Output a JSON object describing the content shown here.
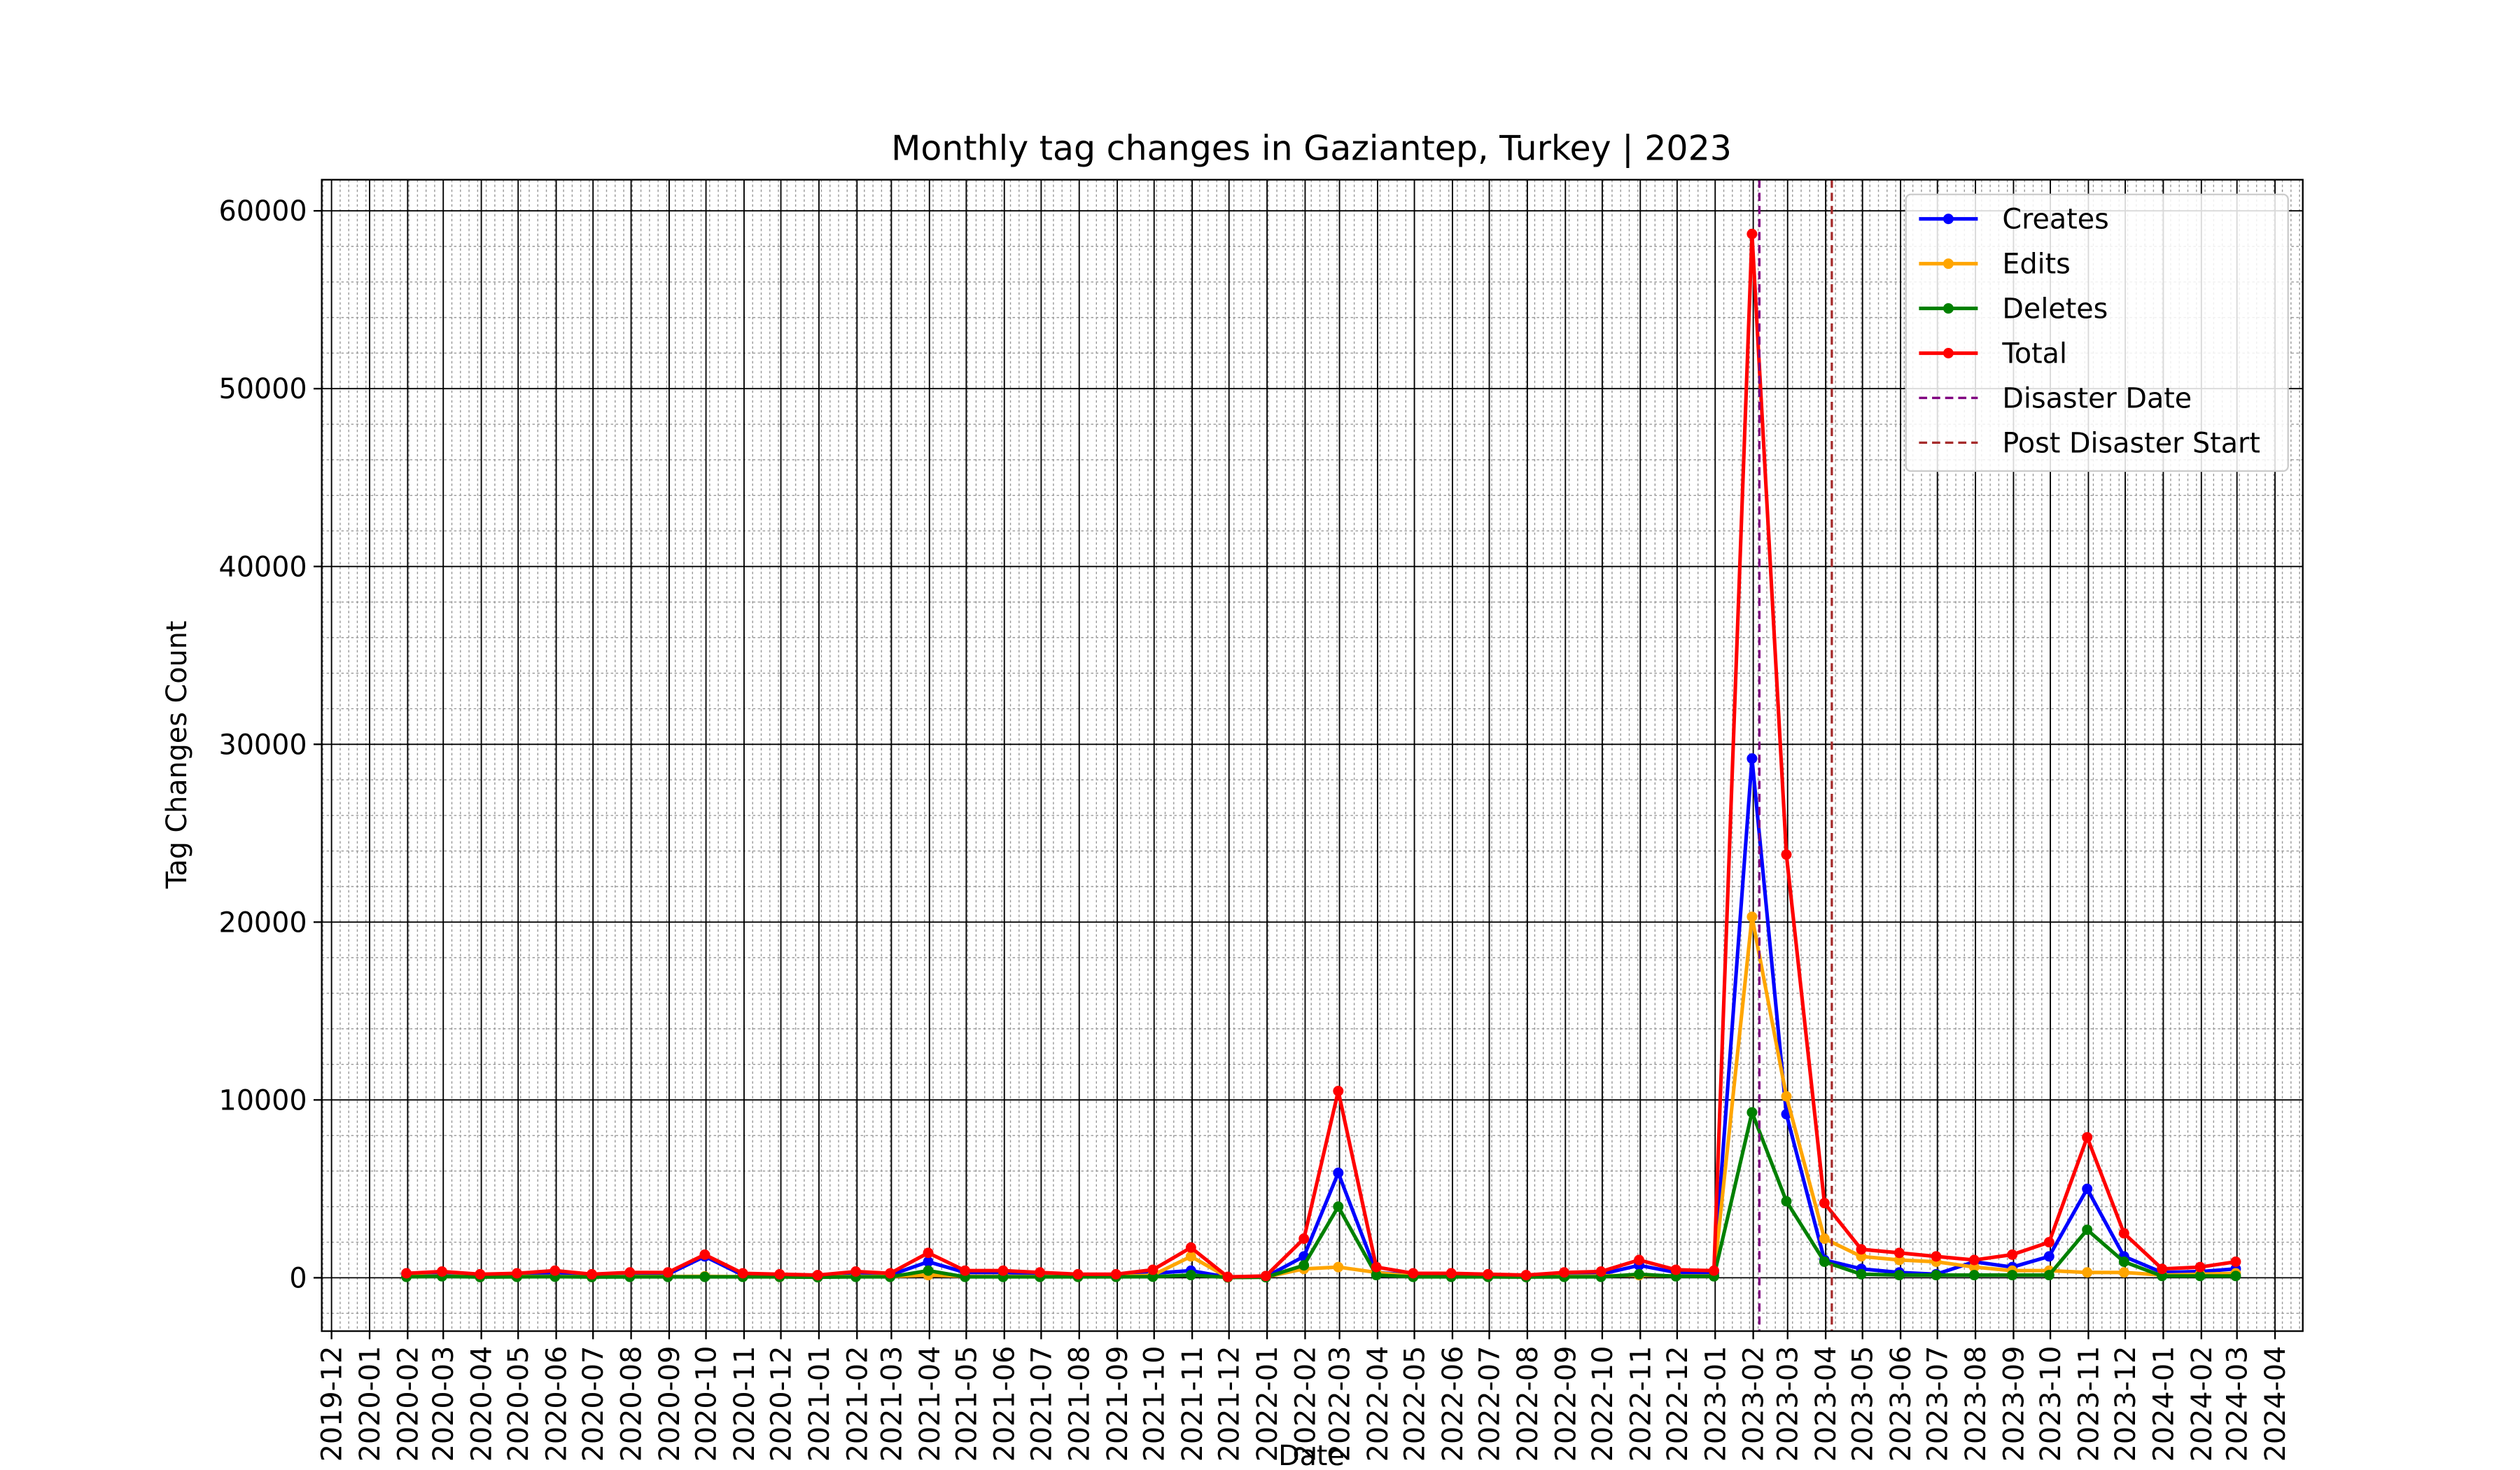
{
  "chart_data": {
    "type": "line",
    "title": "Monthly tag changes in Gaziantep, Turkey | 2023",
    "x_label": "Date",
    "y_label": "Tag Changes Count",
    "x": [
      "2020-01",
      "2020-02",
      "2020-03",
      "2020-04",
      "2020-05",
      "2020-06",
      "2020-07",
      "2020-08",
      "2020-09",
      "2020-10",
      "2020-11",
      "2020-12",
      "2021-01",
      "2021-02",
      "2021-03",
      "2021-04",
      "2021-05",
      "2021-06",
      "2021-07",
      "2021-08",
      "2021-09",
      "2021-10",
      "2021-11",
      "2021-12",
      "2022-01",
      "2022-02",
      "2022-03",
      "2022-04",
      "2022-05",
      "2022-06",
      "2022-07",
      "2022-08",
      "2022-09",
      "2022-10",
      "2022-11",
      "2022-12",
      "2023-01",
      "2023-02",
      "2023-03",
      "2023-04",
      "2023-05",
      "2023-06",
      "2023-07",
      "2023-08",
      "2023-09",
      "2023-10",
      "2023-11",
      "2023-12",
      "2024-01",
      "2024-02"
    ],
    "series": [
      {
        "name": "Creates",
        "color": "#0000ff",
        "values": [
          200,
          250,
          150,
          150,
          300,
          150,
          200,
          200,
          1200,
          150,
          150,
          100,
          250,
          150,
          900,
          300,
          300,
          200,
          100,
          100,
          250,
          400,
          30,
          50,
          1200,
          5900,
          300,
          150,
          150,
          100,
          100,
          200,
          200,
          700,
          300,
          250,
          29200,
          9200,
          1000,
          500,
          300,
          200,
          900,
          600,
          1200,
          5000,
          1200,
          300,
          350,
          500
        ]
      },
      {
        "name": "Edits",
        "color": "#ffa500",
        "values": [
          80,
          100,
          60,
          70,
          80,
          50,
          70,
          70,
          80,
          60,
          50,
          40,
          80,
          70,
          150,
          80,
          80,
          70,
          60,
          60,
          150,
          1200,
          20,
          40,
          500,
          600,
          300,
          80,
          80,
          80,
          50,
          80,
          100,
          150,
          100,
          100,
          20300,
          10200,
          2200,
          1200,
          1000,
          900,
          600,
          400,
          400,
          300,
          300,
          150,
          200,
          250
        ]
      },
      {
        "name": "Deletes",
        "color": "#008000",
        "values": [
          50,
          80,
          40,
          50,
          60,
          40,
          50,
          50,
          50,
          50,
          50,
          30,
          50,
          50,
          400,
          50,
          50,
          50,
          50,
          50,
          60,
          150,
          20,
          30,
          700,
          4000,
          150,
          50,
          50,
          50,
          40,
          50,
          50,
          200,
          80,
          80,
          9300,
          4300,
          900,
          200,
          150,
          150,
          150,
          150,
          150,
          2700,
          900,
          100,
          100,
          100
        ]
      },
      {
        "name": "Total",
        "color": "#ff0000",
        "values": [
          250,
          350,
          200,
          250,
          400,
          200,
          300,
          300,
          1300,
          250,
          200,
          150,
          350,
          250,
          1400,
          400,
          400,
          300,
          200,
          200,
          450,
          1700,
          50,
          100,
          2200,
          10500,
          600,
          250,
          250,
          200,
          150,
          300,
          350,
          1000,
          450,
          400,
          58700,
          23800,
          4200,
          1600,
          1400,
          1200,
          1000,
          1300,
          2000,
          7900,
          2500,
          500,
          600,
          900
        ]
      }
    ],
    "vlines": [
      {
        "name": "Disaster Date",
        "x": "2023-02-06",
        "color": "#800080"
      },
      {
        "name": "Post Disaster Start",
        "x": "2023-04-06",
        "color": "#a52a2a"
      }
    ],
    "xlim": [
      "2019-12",
      "2024-04"
    ],
    "xticks": [
      "2019-12",
      "2020-01",
      "2020-02",
      "2020-03",
      "2020-04",
      "2020-05",
      "2020-06",
      "2020-07",
      "2020-08",
      "2020-09",
      "2020-10",
      "2020-11",
      "2020-12",
      "2021-01",
      "2021-02",
      "2021-03",
      "2021-04",
      "2021-05",
      "2021-06",
      "2021-07",
      "2021-08",
      "2021-09",
      "2021-10",
      "2021-11",
      "2021-12",
      "2022-01",
      "2022-02",
      "2022-03",
      "2022-04",
      "2022-05",
      "2022-06",
      "2022-07",
      "2022-08",
      "2022-09",
      "2022-10",
      "2022-11",
      "2022-12",
      "2023-01",
      "2023-02",
      "2023-03",
      "2023-04",
      "2023-05",
      "2023-06",
      "2023-07",
      "2023-08",
      "2023-09",
      "2023-10",
      "2023-11",
      "2023-12",
      "2024-01",
      "2024-02",
      "2024-03",
      "2024-04"
    ],
    "ylim": [
      -3000,
      61750
    ],
    "yticks": [
      0,
      10000,
      20000,
      30000,
      40000,
      50000,
      60000
    ],
    "grid": true,
    "legend": "upper right"
  }
}
